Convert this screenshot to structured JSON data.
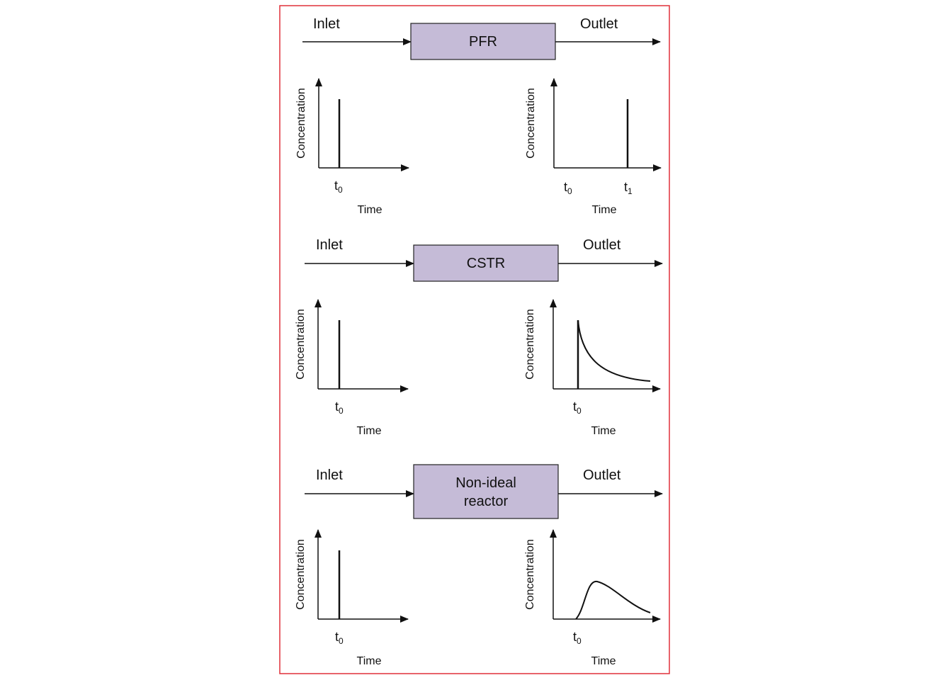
{
  "colors": {
    "frame": "#e0303a",
    "reactor_fill": "#c5bbd7",
    "ink": "#111111"
  },
  "sections": [
    {
      "inlet_label": "Inlet",
      "outlet_label": "Outlet",
      "reactor_lines": [
        "PFR"
      ],
      "inlet_plot": {
        "ylabel": "Concentration",
        "xlabel": "Time",
        "ticks": [
          {
            "base": "t",
            "sub": "0"
          }
        ],
        "shape": "pulse"
      },
      "outlet_plot": {
        "ylabel": "Concentration",
        "xlabel": "Time",
        "ticks": [
          {
            "base": "t",
            "sub": "0"
          },
          {
            "base": "t",
            "sub": "1"
          }
        ],
        "shape": "delayed-pulse"
      }
    },
    {
      "inlet_label": "Inlet",
      "outlet_label": "Outlet",
      "reactor_lines": [
        "CSTR"
      ],
      "inlet_plot": {
        "ylabel": "Concentration",
        "xlabel": "Time",
        "ticks": [
          {
            "base": "t",
            "sub": "0"
          }
        ],
        "shape": "pulse"
      },
      "outlet_plot": {
        "ylabel": "Concentration",
        "xlabel": "Time",
        "ticks": [
          {
            "base": "t",
            "sub": "0"
          }
        ],
        "shape": "exponential-decay"
      }
    },
    {
      "inlet_label": "Inlet",
      "outlet_label": "Outlet",
      "reactor_lines": [
        "Non-ideal",
        "reactor"
      ],
      "inlet_plot": {
        "ylabel": "Concentration",
        "xlabel": "Time",
        "ticks": [
          {
            "base": "t",
            "sub": "0"
          }
        ],
        "shape": "pulse"
      },
      "outlet_plot": {
        "ylabel": "Concentration",
        "xlabel": "Time",
        "ticks": [
          {
            "base": "t",
            "sub": "0"
          }
        ],
        "shape": "skewed-peak"
      }
    }
  ]
}
